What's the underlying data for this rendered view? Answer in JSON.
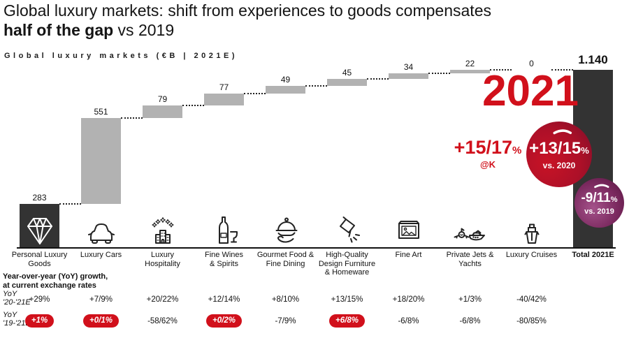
{
  "header": {
    "title_line1": "Global luxury markets: shift from experiences to goods compensates",
    "title_bold": "half of the gap",
    "title_suffix": " vs 2019",
    "subtitle": "Global luxury markets (€B | 2021E)"
  },
  "colors": {
    "accent_red": "#d1101b",
    "bar_gray": "#b2b2b2",
    "bar_dark": "#333333",
    "badge_red_bright": "#c81326",
    "badge_red_dark": "#7c0e2a",
    "badge_purple_bright": "#a4528a",
    "badge_purple_dark": "#571540"
  },
  "chart_data": {
    "type": "waterfall",
    "title": "Global luxury markets (€B | 2021E)",
    "unit": "€B, 2021E",
    "total": 1140,
    "columns": [
      {
        "category": [
          "Personal Luxury",
          "Goods"
        ],
        "value": 283,
        "label": "283",
        "bar": "dark",
        "icon": "diamond-icon"
      },
      {
        "category": [
          "Luxury Cars"
        ],
        "value": 551,
        "label": "551",
        "bar": "gray",
        "icon": "car-icon"
      },
      {
        "category": [
          "Luxury",
          "Hospitality"
        ],
        "value": 79,
        "label": "79",
        "bar": "gray",
        "icon": "hotel-stars-icon"
      },
      {
        "category": [
          "Fine Wines",
          "& Spirits"
        ],
        "value": 77,
        "label": "77",
        "bar": "gray",
        "icon": "wine-icon"
      },
      {
        "category": [
          "Gourmet Food &",
          "Fine Dining"
        ],
        "value": 49,
        "label": "49",
        "bar": "gray",
        "icon": "gourmet-cloche-icon"
      },
      {
        "category": [
          "High-Quality",
          "Design Furniture",
          "& Homeware"
        ],
        "value": 45,
        "label": "45",
        "bar": "gray",
        "icon": "spotlight-icon"
      },
      {
        "category": [
          "Fine Art"
        ],
        "value": 34,
        "label": "34",
        "bar": "gray",
        "icon": "picture-frame-icon"
      },
      {
        "category": [
          "Private Jets &",
          "Yachts"
        ],
        "value": 22,
        "label": "22",
        "bar": "gray",
        "icon": "jet-yacht-icon"
      },
      {
        "category": [
          "Luxury Cruises"
        ],
        "value": 0,
        "label": "0",
        "bar": "gray",
        "icon": "cruise-ship-icon"
      },
      {
        "category": [
          "Total 2021E"
        ],
        "value": 1140,
        "label": "1.140",
        "bar": "dark",
        "icon": null,
        "total": true
      }
    ]
  },
  "annotations": {
    "year": "2021",
    "growth_constant": {
      "value": "+15/17",
      "pct": "%",
      "note": "@K"
    },
    "badge_vs2020": {
      "value": "+13/15",
      "pct": "%",
      "caption": "vs. 2020"
    },
    "badge_vs2019": {
      "value": "-9/11",
      "pct": "%",
      "caption": "vs. 2019"
    }
  },
  "yoy_table": {
    "note_line1": "Year-over-year (YoY) growth,",
    "note_line2": "at current exchange rates",
    "rows": [
      {
        "label_line1": "YoY",
        "label_line2": "'20-'21E",
        "cells": [
          {
            "text": "+29%",
            "highlight": false
          },
          {
            "text": "+7/9%",
            "highlight": false
          },
          {
            "text": "+20/22%",
            "highlight": false
          },
          {
            "text": "+12/14%",
            "highlight": false
          },
          {
            "text": "+8/10%",
            "highlight": false
          },
          {
            "text": "+13/15%",
            "highlight": false
          },
          {
            "text": "+18/20%",
            "highlight": false
          },
          {
            "text": "+1/3%",
            "highlight": false
          },
          {
            "text": "-40/42%",
            "highlight": false
          }
        ]
      },
      {
        "label_line1": "YoY",
        "label_line2": "'19-'21E",
        "cells": [
          {
            "text": "+1%",
            "highlight": true
          },
          {
            "text": "+0/1%",
            "highlight": true
          },
          {
            "text": "-58/62%",
            "highlight": false
          },
          {
            "text": "+0/2%",
            "highlight": true
          },
          {
            "text": "-7/9%",
            "highlight": false
          },
          {
            "text": "+6/8%",
            "highlight": true
          },
          {
            "text": "-6/8%",
            "highlight": false
          },
          {
            "text": "-6/8%",
            "highlight": false
          },
          {
            "text": "-80/85%",
            "highlight": false
          }
        ]
      }
    ]
  }
}
